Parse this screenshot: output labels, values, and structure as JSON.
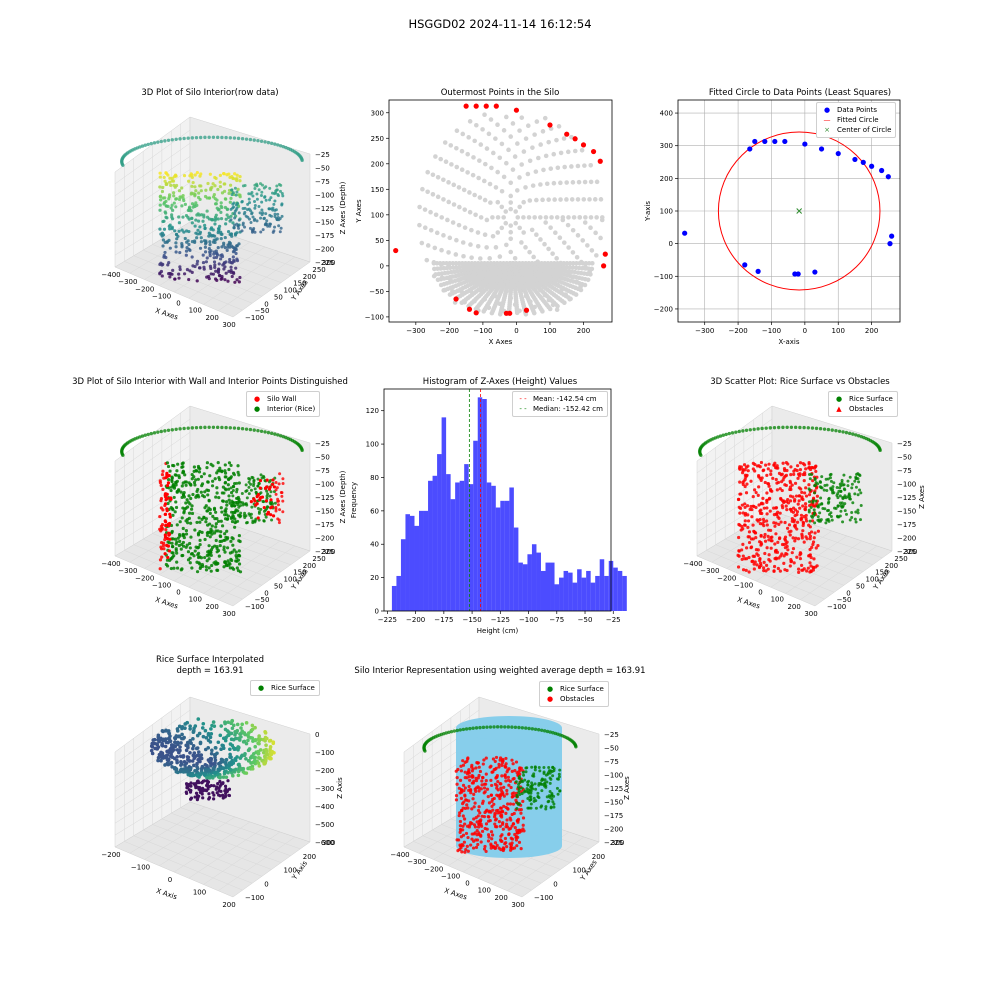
{
  "figure": {
    "title": "HSGGD02 2024-11-14 16:12:54"
  },
  "chart_data": [
    {
      "type": "scatter",
      "title": "3D Plot of Silo Interior(row data)",
      "xlabel": "X Axes",
      "ylabel": "Y Axes",
      "zlabel": "Z Axes (Depth)",
      "xlim": [
        -400,
        300
      ],
      "ylim": [
        -100,
        300
      ],
      "zlim": [
        -225,
        -25
      ],
      "xticks": [
        "−400",
        "−300",
        "−200",
        "−100",
        "0",
        "100",
        "200",
        "300"
      ],
      "yticks": [
        "−100",
        "−50",
        "0",
        "50",
        "100",
        "150",
        "200",
        "250",
        "300"
      ],
      "zticks": [
        "−25",
        "−50",
        "−75",
        "−100",
        "−125",
        "−150",
        "−175",
        "−200",
        "−225"
      ],
      "colormap": "viridis"
    },
    {
      "type": "scatter",
      "title": "Outermost Points in the Silo",
      "xlabel": "X Axes",
      "ylabel": "Y Axes",
      "xlim": [
        -380,
        285
      ],
      "ylim": [
        -110,
        325
      ],
      "xticks": [
        -300,
        -200,
        -100,
        0,
        100,
        200
      ],
      "yticks": [
        -100,
        -50,
        0,
        50,
        100,
        150,
        200,
        250,
        300
      ],
      "series": [
        {
          "color": "#d3d3d3"
        },
        {
          "color": "#ff0000",
          "x": [
            -150,
            -120,
            -90,
            -60,
            0,
            100,
            150,
            175,
            200,
            230,
            250,
            -180,
            -140,
            -120,
            -30,
            -20,
            30,
            -360,
            260,
            265
          ],
          "y": [
            313,
            313,
            313,
            313,
            305,
            276,
            258,
            249,
            237,
            224,
            205,
            -65,
            -85,
            -92,
            -93,
            -93,
            -87,
            30,
            0,
            23
          ]
        }
      ]
    },
    {
      "type": "scatter",
      "title": "Fitted Circle to Data Points (Least Squares)",
      "xlabel": "X-axis",
      "ylabel": "Y-axis",
      "xlim": [
        -380,
        285
      ],
      "ylim": [
        -240,
        440
      ],
      "grid": true,
      "legend": "upper right",
      "xticks": [
        -300,
        -200,
        -100,
        0,
        100,
        200
      ],
      "yticks": [
        -200,
        -100,
        0,
        100,
        200,
        300,
        400
      ],
      "series": [
        {
          "name": "Data Points",
          "color": "#0000ff",
          "x": [
            -360,
            -180,
            -165,
            -150,
            -140,
            -120,
            -90,
            -60,
            -30,
            -20,
            0,
            30,
            50,
            100,
            150,
            175,
            200,
            230,
            250,
            255,
            260
          ],
          "y": [
            32,
            -65,
            290,
            313,
            -85,
            313,
            313,
            313,
            -93,
            -93,
            305,
            -87,
            290,
            276,
            258,
            249,
            237,
            224,
            205,
            0,
            23
          ]
        },
        {
          "name": "Fitted Circle",
          "color": "#ff0000",
          "center": [
            -17,
            100
          ],
          "radius": 242
        },
        {
          "name": "Center of Circle",
          "color": "#2e8b2e",
          "x": [
            -17
          ],
          "y": [
            100
          ]
        }
      ]
    },
    {
      "type": "scatter",
      "title": "3D Plot of Silo Interior with Wall and Interior Points Distinguished",
      "xlabel": "X Axes",
      "ylabel": "Y Axes",
      "zlabel": "Z Axes (Depth)",
      "xticks": [
        "−400",
        "−300",
        "−200",
        "−100",
        "0",
        "100",
        "200",
        "300"
      ],
      "yticks": [
        "−100",
        "−50",
        "0",
        "50",
        "100",
        "150",
        "200",
        "250",
        "300"
      ],
      "zticks": [
        "−25",
        "−50",
        "−75",
        "−100",
        "−125",
        "−150",
        "−175",
        "−200",
        "−225"
      ],
      "series": [
        {
          "name": "Silo Wall",
          "color": "#ff0000"
        },
        {
          "name": "Interior (Rice)",
          "color": "#008000"
        }
      ]
    },
    {
      "type": "bar",
      "title": "Histogram of Z-Axes (Height) Values",
      "xlabel": "Height (cm)",
      "ylabel": "Frequency",
      "xlim": [
        -228,
        -27
      ],
      "ylim": [
        0,
        133
      ],
      "xticks": [
        -225,
        -200,
        -175,
        -150,
        -125,
        -100,
        -75,
        -50,
        -25
      ],
      "yticks": [
        0,
        20,
        40,
        60,
        80,
        100,
        120
      ],
      "bin_start": -221,
      "bin_width": 4,
      "values": [
        15,
        21,
        43,
        58,
        57,
        51,
        60,
        60,
        78,
        81,
        94,
        116,
        82,
        67,
        77,
        78,
        88,
        76,
        102,
        128,
        127,
        77,
        75,
        62,
        66,
        66,
        74,
        50,
        29,
        28,
        34,
        40,
        35,
        24,
        29,
        29,
        16,
        20,
        24,
        23,
        17,
        25,
        20,
        24,
        17,
        21,
        31,
        21,
        30,
        26,
        24,
        21
      ],
      "bar_color": "#0000ff",
      "mean": -142.54,
      "median": -152.42,
      "legend": "upper right",
      "lines": [
        {
          "name": "Mean: -142.54 cm",
          "color": "#ff0000"
        },
        {
          "name": "Median: -152.42 cm",
          "color": "#008000"
        }
      ]
    },
    {
      "type": "scatter",
      "title": "3D Scatter Plot: Rice Surface vs Obstacles",
      "xlabel": "X Axes",
      "ylabel": "Y Axes",
      "zlabel": "Z Axes",
      "xticks": [
        "−400",
        "−300",
        "−200",
        "−100",
        "0",
        "100",
        "200",
        "300"
      ],
      "yticks": [
        "−100",
        "−50",
        "0",
        "50",
        "100",
        "150",
        "200",
        "250",
        "300"
      ],
      "zticks": [
        "−25",
        "−50",
        "−75",
        "−100",
        "−125",
        "−150",
        "−175",
        "−200",
        "−225"
      ],
      "series": [
        {
          "name": "Rice Surface",
          "color": "#008000"
        },
        {
          "name": "Obstacles",
          "color": "#ff0000"
        }
      ]
    },
    {
      "type": "scatter",
      "title": "Rice Surface Interpolated\ndepth = 163.91",
      "xlabel": "X Axis",
      "ylabel": "Y Axis",
      "zlabel": "Z Axis",
      "xticks": [
        "−200",
        "−100",
        "0",
        "100",
        "200"
      ],
      "yticks": [
        "−100",
        "0",
        "100",
        "200",
        "300"
      ],
      "zticks": [
        "0",
        "−100",
        "−200",
        "−300",
        "−400",
        "−500",
        "−600"
      ],
      "series": [
        {
          "name": "Rice Surface",
          "color": "#008000"
        }
      ]
    },
    {
      "type": "scatter",
      "title": "Silo Interior Representation using weighted average depth = 163.91",
      "xlabel": "X Axes",
      "ylabel": "Y Axes",
      "zlabel": "Z Axes",
      "xticks": [
        "−400",
        "−300",
        "−200",
        "−100",
        "0",
        "100",
        "200",
        "300"
      ],
      "yticks": [
        "−100",
        "0",
        "100",
        "200",
        "300"
      ],
      "zticks": [
        "−25",
        "−50",
        "−75",
        "−100",
        "−125",
        "−150",
        "−175",
        "−200",
        "−225"
      ],
      "series": [
        {
          "name": "Rice Surface",
          "color": "#008000"
        },
        {
          "name": "Obstacles",
          "color": "#ff0000"
        }
      ]
    }
  ]
}
